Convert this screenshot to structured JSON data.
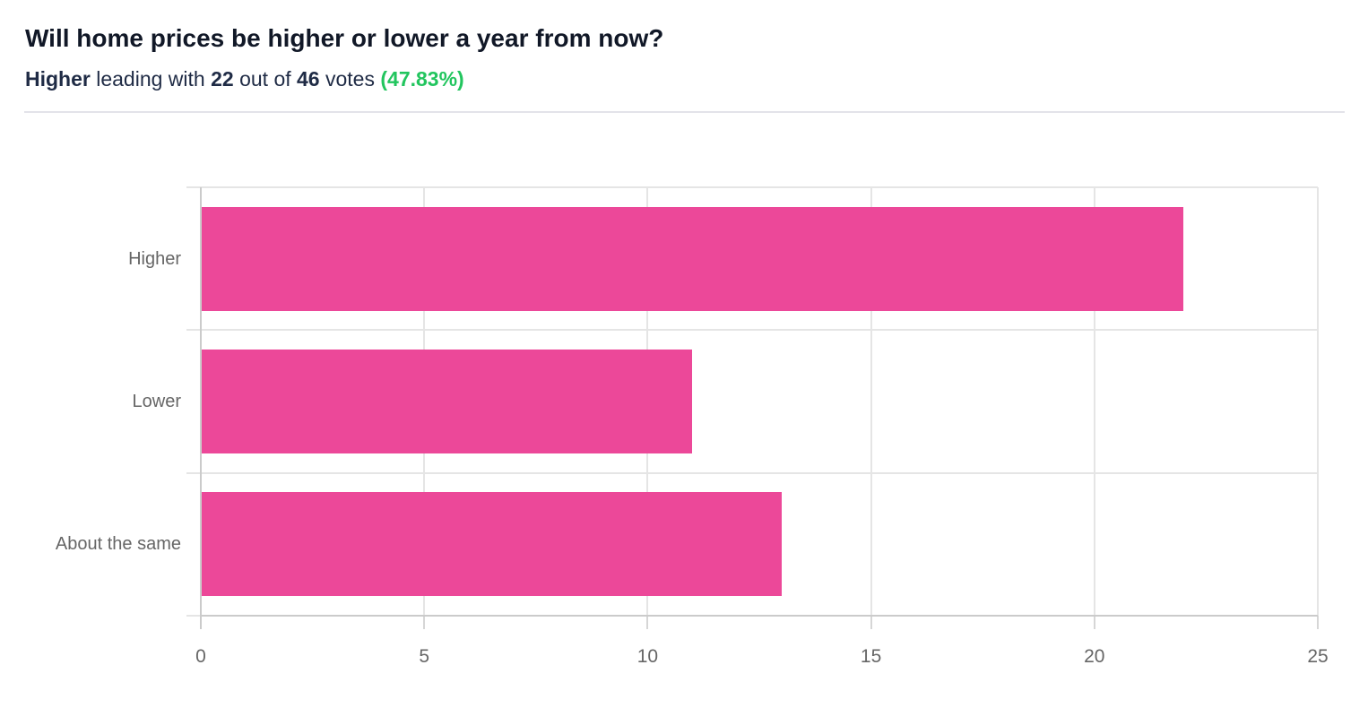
{
  "header": {
    "title": "Will home prices be higher or lower a year from now?",
    "subtitle": {
      "leader": "Higher",
      "mid1": " leading with ",
      "votes": "22",
      "mid2": " out of ",
      "total": "46",
      "mid3": " votes ",
      "percent": "(47.83%)"
    }
  },
  "chart_data": {
    "type": "bar",
    "orientation": "horizontal",
    "title": "Will home prices be higher or lower a year from now?",
    "categories": [
      "Higher",
      "Lower",
      "About the same"
    ],
    "values": [
      22,
      11,
      13
    ],
    "xlabel": "",
    "ylabel": "",
    "xlim": [
      0,
      25
    ],
    "x_ticks": [
      0,
      5,
      10,
      15,
      20,
      25
    ],
    "grid": true,
    "legend": false,
    "colors": {
      "bar": "#EC4899",
      "grid": "#E5E5E5",
      "axis": "#CBCBCB",
      "label": "#666666",
      "title": "#111827",
      "subtitle": "#1F2B45",
      "green": "#22C55E",
      "divider": "#E3E3E9"
    }
  }
}
